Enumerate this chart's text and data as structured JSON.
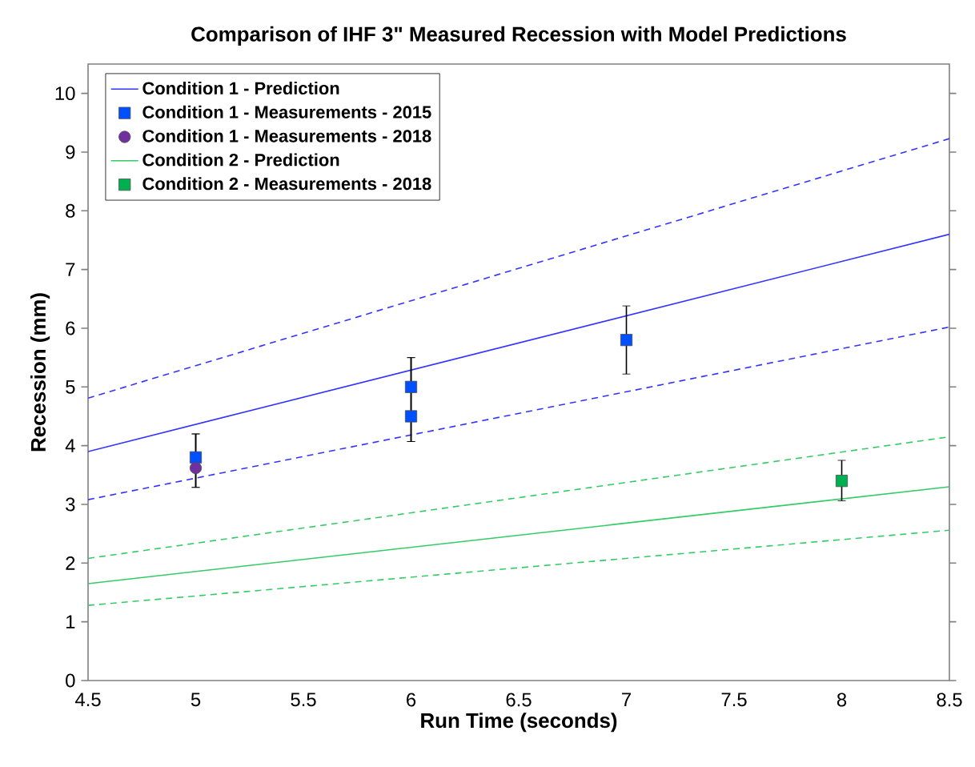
{
  "chart_data": {
    "type": "line",
    "title": "Comparison of IHF 3\" Measured Recession with Model Predictions",
    "xlabel": "Run Time (seconds)",
    "ylabel": "Recession (mm)",
    "xlim": [
      4.5,
      8.5
    ],
    "xticks": [
      4.5,
      5,
      5.5,
      6,
      6.5,
      7,
      7.5,
      8,
      8.5
    ],
    "ylim": [
      0,
      10.5
    ],
    "yticks": [
      0,
      1,
      2,
      3,
      4,
      5,
      6,
      7,
      8,
      9,
      10
    ],
    "grid": false,
    "legend": "top left",
    "series": [
      {
        "line_style": "dashed",
        "color": "#3333ff",
        "x": [
          4.5,
          8.5
        ],
        "values": [
          4.81,
          9.23
        ]
      },
      {
        "line_style": "dashed",
        "color": "#3333ff",
        "x": [
          4.5,
          8.5
        ],
        "values": [
          3.08,
          6.02
        ]
      },
      {
        "line_style": "dashed",
        "color": "#33cc66",
        "x": [
          4.5,
          8.5
        ],
        "values": [
          2.08,
          4.15
        ]
      },
      {
        "line_style": "dashed",
        "color": "#33cc66",
        "x": [
          4.5,
          8.5
        ],
        "values": [
          1.28,
          2.56
        ]
      },
      {
        "name": "Condition 1 - Prediction",
        "line_style": "solid",
        "color": "#3333ff",
        "x": [
          4.5,
          8.5
        ],
        "values": [
          3.9,
          7.6
        ]
      },
      {
        "name": "Condition 1 - Measurements - 2015",
        "type": "scatter",
        "marker": "square",
        "color": "#0050ff",
        "x": [
          5,
          6,
          6,
          7
        ],
        "values": [
          3.8,
          5.0,
          4.5,
          5.8
        ],
        "errors": [
          [
            3.29,
            4.2
          ],
          [
            4.07,
            5.5
          ],
          [
            4.07,
            5.5
          ],
          [
            5.22,
            6.38
          ]
        ]
      },
      {
        "name": "Condition 1 - Measurements - 2018",
        "type": "scatter",
        "marker": "circle",
        "color": "#7030a0",
        "x": [
          5
        ],
        "values": [
          3.62
        ],
        "errors": [
          [
            3.29,
            4.2
          ]
        ]
      },
      {
        "name": "Condition 2 - Prediction",
        "line_style": "solid",
        "color": "#33cc66",
        "x": [
          4.5,
          8.5
        ],
        "values": [
          1.65,
          3.3
        ]
      },
      {
        "name": "Condition 2 - Measurements - 2018",
        "type": "scatter",
        "marker": "square",
        "color": "#00b050",
        "x": [
          8
        ],
        "values": [
          3.4
        ],
        "errors": [
          [
            3.06,
            3.75
          ]
        ]
      }
    ]
  }
}
